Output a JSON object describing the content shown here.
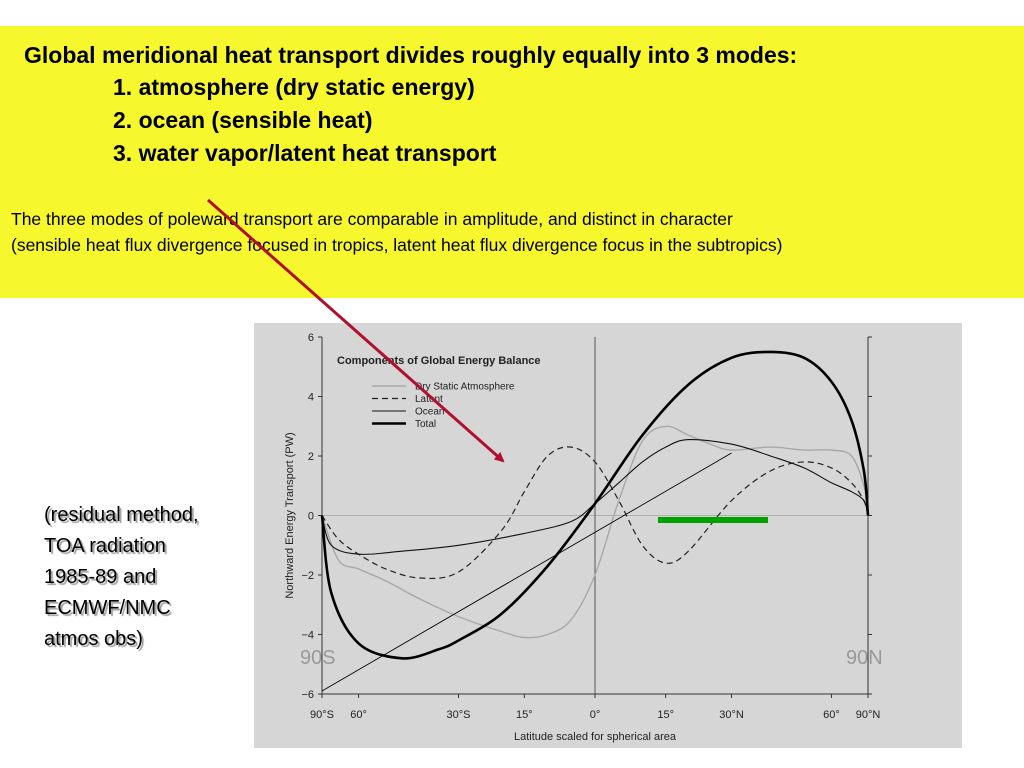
{
  "slide": {
    "heading": "Global meridional heat transport divides roughly equally into 3 modes:",
    "modes": [
      "1. atmosphere (dry static energy)",
      "2. ocean (sensible heat)",
      "3. water vapor/latent heat transport"
    ],
    "paragraph_lines": [
      "The three modes of poleward transport are comparable in amplitude, and distinct in character",
      "(sensible heat flux divergence focused in tropics, latent heat flux divergence focus in the subtropics)"
    ],
    "side_note_lines": [
      "(residual method,",
      "TOA radiation",
      "1985-89 and",
      "ECMWF/NMC",
      "atmos obs)"
    ],
    "overlay_left": "90S",
    "overlay_right": "90N",
    "colors": {
      "highlight_background": "#f7f72e",
      "arrow": "#b0102e",
      "green_bar": "#00a000",
      "chart_panel": "#d6d6d6"
    }
  },
  "chart_data": {
    "type": "line",
    "title": "Components of Global Energy Balance",
    "xlabel": "Latitude scaled for spherical area",
    "ylabel": "Northward Energy Transport (PW)",
    "xscale": "sin(latitude)",
    "xlim": [
      -90,
      90
    ],
    "ylim": [
      -6,
      6
    ],
    "xticks": [
      {
        "value": -90,
        "label": "90°S"
      },
      {
        "value": -60,
        "label": "60°"
      },
      {
        "value": -30,
        "label": "30°S"
      },
      {
        "value": -15,
        "label": "15°"
      },
      {
        "value": 0,
        "label": "0°"
      },
      {
        "value": 15,
        "label": "15°"
      },
      {
        "value": 30,
        "label": "30°N"
      },
      {
        "value": 60,
        "label": "60°"
      },
      {
        "value": 90,
        "label": "90°N"
      }
    ],
    "yticks": [
      6,
      4,
      2,
      0,
      -2,
      -4,
      -6
    ],
    "legend": [
      "Dry Static Atmosphere",
      "Latent",
      "Ocean",
      "Total"
    ],
    "legend_position": "top-left",
    "series": [
      {
        "name": "Dry Static Atmosphere",
        "style": "gray-solid",
        "x": [
          -90,
          -70,
          -60,
          -50,
          -40,
          -30,
          -20,
          -15,
          -10,
          -5,
          0,
          5,
          10,
          15,
          20,
          25,
          30,
          40,
          50,
          60,
          70,
          80,
          90
        ],
        "y": [
          0,
          -1.5,
          -1.8,
          -2.2,
          -2.8,
          -3.4,
          -3.9,
          -4.1,
          -4.0,
          -3.5,
          -2.0,
          0.5,
          2.5,
          3.0,
          2.7,
          2.4,
          2.2,
          2.3,
          2.2,
          2.2,
          2.0,
          1.0,
          0
        ]
      },
      {
        "name": "Latent",
        "style": "dashed",
        "x": [
          -90,
          -70,
          -60,
          -50,
          -40,
          -30,
          -20,
          -15,
          -10,
          -5,
          0,
          5,
          10,
          15,
          20,
          30,
          40,
          50,
          60,
          70,
          80,
          90
        ],
        "y": [
          0,
          -0.8,
          -1.3,
          -1.8,
          -2.1,
          -1.9,
          -0.5,
          0.8,
          2.0,
          2.3,
          1.8,
          0.5,
          -1.0,
          -1.6,
          -1.2,
          0.5,
          1.5,
          1.8,
          1.6,
          1.1,
          0.5,
          0
        ]
      },
      {
        "name": "Ocean",
        "style": "thin-solid",
        "x": [
          -90,
          -75,
          -60,
          -45,
          -30,
          -15,
          -5,
          0,
          5,
          10,
          15,
          20,
          30,
          40,
          50,
          60,
          70,
          80,
          90
        ],
        "y": [
          0,
          -1.0,
          -1.3,
          -1.2,
          -1.0,
          -0.6,
          -0.2,
          0.4,
          1.1,
          1.8,
          2.3,
          2.55,
          2.4,
          2.0,
          1.6,
          1.1,
          0.8,
          0.5,
          0
        ]
      },
      {
        "name": "Total",
        "style": "thick-solid",
        "x": [
          -90,
          -75,
          -60,
          -45,
          -35,
          -30,
          -20,
          -10,
          0,
          10,
          20,
          30,
          40,
          50,
          60,
          70,
          80,
          90
        ],
        "y": [
          0,
          -2.6,
          -4.3,
          -4.8,
          -4.5,
          -4.2,
          -3.3,
          -1.7,
          0.4,
          2.7,
          4.4,
          5.3,
          5.5,
          5.3,
          4.5,
          3.2,
          1.5,
          0
        ]
      },
      {
        "name": "",
        "style": "straight-reference",
        "x": [
          -90,
          30
        ],
        "y": [
          -5.9,
          2.1
        ]
      }
    ]
  }
}
